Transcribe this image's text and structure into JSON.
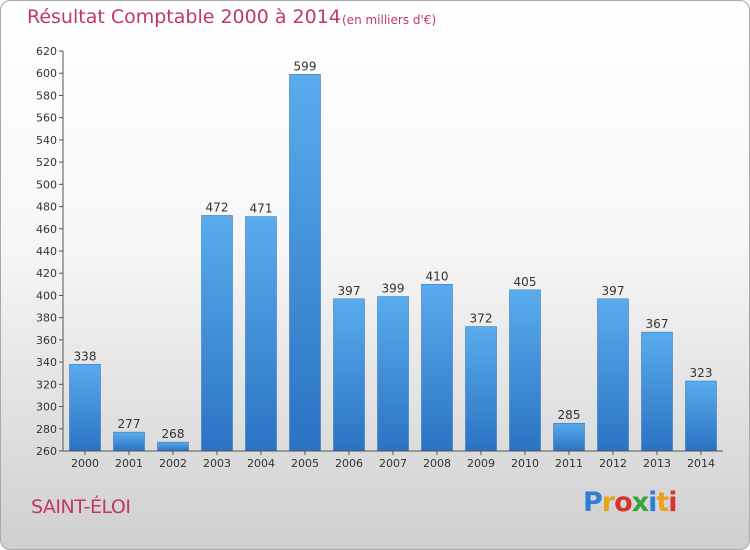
{
  "chart_data": {
    "type": "bar",
    "title": "Résultat Comptable 2000 à 2014",
    "subtitle": "(en milliers d'€)",
    "categories": [
      "2000",
      "2001",
      "2002",
      "2003",
      "2004",
      "2005",
      "2006",
      "2007",
      "2008",
      "2009",
      "2010",
      "2011",
      "2012",
      "2013",
      "2014"
    ],
    "values": [
      338,
      277,
      268,
      472,
      471,
      599,
      397,
      399,
      410,
      372,
      405,
      285,
      397,
      367,
      323
    ],
    "ylim": [
      260,
      620
    ],
    "yticks": [
      260,
      280,
      300,
      320,
      340,
      360,
      380,
      400,
      420,
      440,
      460,
      480,
      500,
      520,
      540,
      560,
      580,
      600,
      620
    ],
    "xlabel": "",
    "ylabel": "",
    "grid": false,
    "bar_color": "#3d8fd8"
  },
  "commune": "SAINT-ÉLOI",
  "brand": {
    "letters": [
      "P",
      "r",
      "o",
      "x",
      "i",
      "t",
      "i"
    ]
  }
}
